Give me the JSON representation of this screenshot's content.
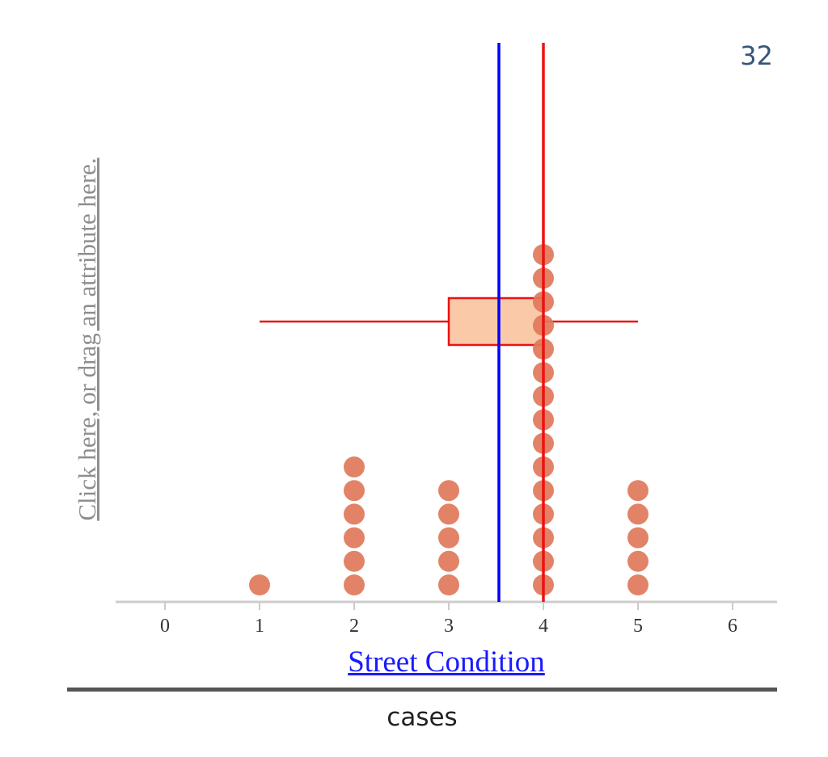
{
  "count_label": "32",
  "y_axis": {
    "prompt": "Click here, or drag an attribute here."
  },
  "footer": {
    "label": "cases"
  },
  "colors": {
    "dot": "#e0785a",
    "mean_line": "#0000ff",
    "median_line": "#ee1111",
    "box_fill": "#f9c9a8",
    "box_stroke": "#ee1111",
    "axis": "#cccccc"
  },
  "chart_data": {
    "type": "scatter",
    "plot_style": "dot-plot",
    "xlabel": "Street Condition",
    "xlim": [
      -0.5,
      6.5
    ],
    "x_ticks": [
      0,
      1,
      2,
      3,
      4,
      5,
      6
    ],
    "tick_labels": [
      "0",
      "1",
      "2",
      "3",
      "4",
      "5",
      "6"
    ],
    "dot_counts": [
      {
        "x": 1,
        "count": 1
      },
      {
        "x": 2,
        "count": 6
      },
      {
        "x": 3,
        "count": 5
      },
      {
        "x": 4,
        "count": 15
      },
      {
        "x": 5,
        "count": 5
      }
    ],
    "mean": 3.53,
    "median": 4,
    "box_plot": {
      "min": 1,
      "q1": 3,
      "median": 4,
      "q3": 4,
      "max": 5
    }
  }
}
